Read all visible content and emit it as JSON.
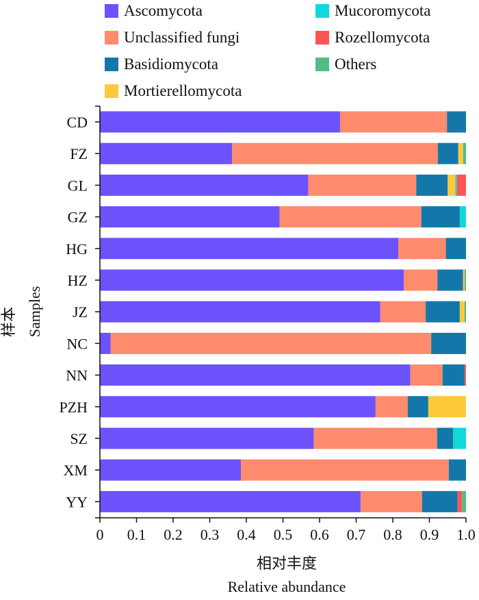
{
  "chart_data": {
    "type": "bar",
    "orientation": "horizontal",
    "stacked": true,
    "title": "",
    "xlabel_cn": "相对丰度",
    "xlabel": "Relative abundance",
    "ylabel_cn": "样本",
    "ylabel": "Samples",
    "xlim": [
      0,
      1.0
    ],
    "xticks": [
      "0",
      "0.1",
      "0.2",
      "0.3",
      "0.4",
      "0.5",
      "0.6",
      "0.7",
      "0.8",
      "0.9",
      "1.0"
    ],
    "grid": false,
    "legend_position": "top",
    "categories": [
      "CD",
      "FZ",
      "GL",
      "GZ",
      "HG",
      "HZ",
      "JZ",
      "NC",
      "NN",
      "PZH",
      "SZ",
      "XM",
      "YY"
    ],
    "series": [
      {
        "name": "Ascomycota",
        "color": "#6c52fb",
        "values": [
          0.656,
          0.361,
          0.569,
          0.491,
          0.815,
          0.83,
          0.766,
          0.029,
          0.848,
          0.753,
          0.584,
          0.385,
          0.712
        ]
      },
      {
        "name": "Unclassified fungi",
        "color": "#fe8b6e",
        "values": [
          0.292,
          0.562,
          0.295,
          0.387,
          0.13,
          0.092,
          0.124,
          0.876,
          0.088,
          0.088,
          0.337,
          0.568,
          0.168
        ]
      },
      {
        "name": "Basidiomycota",
        "color": "#1378a9",
        "values": [
          0.052,
          0.056,
          0.086,
          0.105,
          0.055,
          0.07,
          0.093,
          0.095,
          0.06,
          0.056,
          0.044,
          0.047,
          0.097
        ]
      },
      {
        "name": "Mortierellomycota",
        "color": "#fec93b",
        "values": [
          0.0,
          0.013,
          0.021,
          0.0,
          0.0,
          0.004,
          0.013,
          0.0,
          0.0,
          0.103,
          0.0,
          0.0,
          0.0
        ]
      },
      {
        "name": "Mucoromycota",
        "color": "#12d8da",
        "values": [
          0.0,
          0.0,
          0.004,
          0.017,
          0.0,
          0.0,
          0.0,
          0.0,
          0.0,
          0.0,
          0.035,
          0.0,
          0.0
        ]
      },
      {
        "name": "Rozellomycota",
        "color": "#fd5555",
        "values": [
          0.0,
          0.0,
          0.025,
          0.0,
          0.0,
          0.0,
          0.0,
          0.0,
          0.004,
          0.0,
          0.0,
          0.0,
          0.012
        ]
      },
      {
        "name": "Others",
        "color": "#52bc86",
        "values": [
          0.0,
          0.008,
          0.0,
          0.0,
          0.0,
          0.004,
          0.004,
          0.0,
          0.0,
          0.0,
          0.0,
          0.0,
          0.011
        ]
      }
    ]
  }
}
